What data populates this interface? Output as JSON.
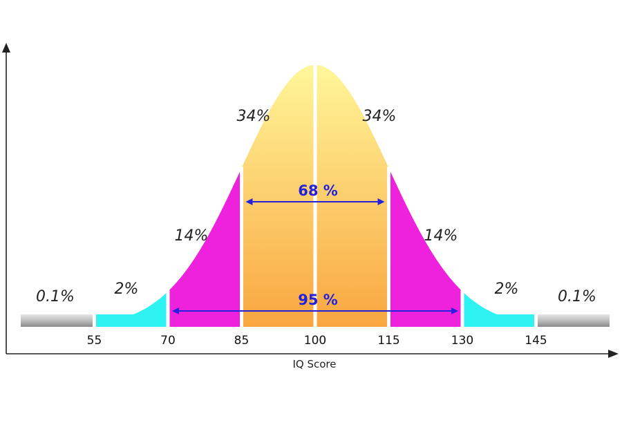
{
  "chart_data": {
    "type": "area",
    "title": "",
    "xlabel": "IQ Score",
    "ylabel": "",
    "distribution": {
      "mean": 100,
      "sd": 15
    },
    "xlim": [
      40,
      160
    ],
    "x_ticks": [
      55,
      70,
      85,
      100,
      115,
      130,
      145
    ],
    "x_tick_labels": [
      "55",
      "70",
      "85",
      "100",
      "115",
      "130",
      "145"
    ],
    "segments": [
      {
        "from": 40,
        "to": 55,
        "label": "0.1%",
        "color": "#b8b8b8"
      },
      {
        "from": 55,
        "to": 70,
        "label": "2%",
        "color": "#2ef2f2"
      },
      {
        "from": 70,
        "to": 85,
        "label": "14%",
        "color": "#ee22dd"
      },
      {
        "from": 85,
        "to": 100,
        "label": "34%",
        "color": "#f9c660"
      },
      {
        "from": 100,
        "to": 115,
        "label": "34%",
        "color": "#f9c660"
      },
      {
        "from": 115,
        "to": 130,
        "label": "14%",
        "color": "#ee22dd"
      },
      {
        "from": 130,
        "to": 145,
        "label": "2%",
        "color": "#2ef2f2"
      },
      {
        "from": 145,
        "to": 160,
        "label": "0.1%",
        "color": "#b8b8b8"
      }
    ],
    "spans": [
      {
        "from": 85,
        "to": 115,
        "label": "68 %"
      },
      {
        "from": 70,
        "to": 130,
        "label": "95 %"
      }
    ],
    "grid": false,
    "legend": "none"
  }
}
